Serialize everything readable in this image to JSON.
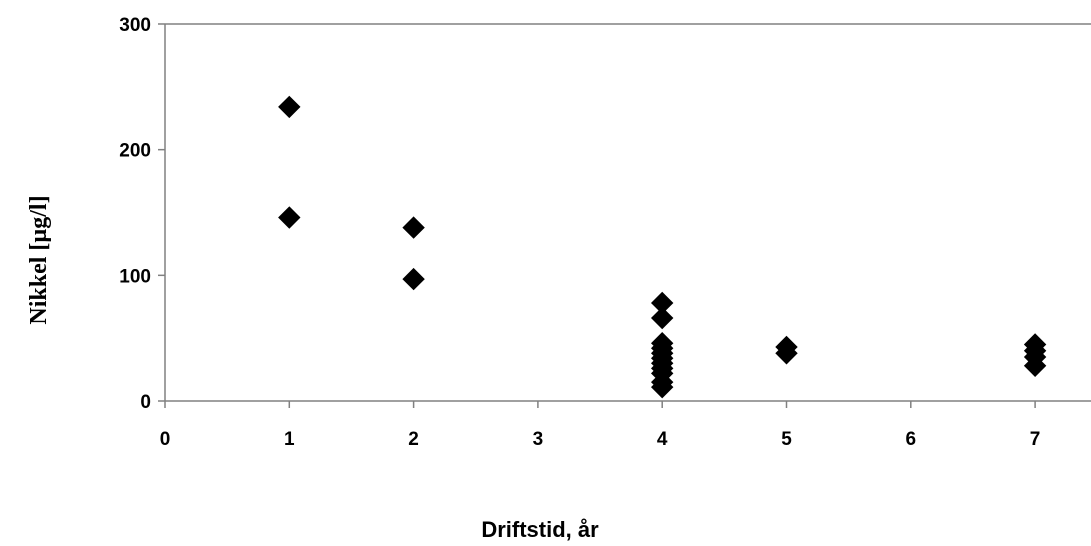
{
  "chart_data": {
    "type": "scatter",
    "title": "",
    "xlabel": "Driftstid, år",
    "ylabel": "Nikkel [µg/l]",
    "xlim": [
      0,
      7.4
    ],
    "ylim": [
      0,
      300
    ],
    "x_ticks": [
      "0",
      "1",
      "2",
      "3",
      "4",
      "5",
      "6",
      "7"
    ],
    "y_ticks": [
      "0",
      "100",
      "200",
      "300"
    ],
    "grid": false,
    "legend": "none",
    "marker": "diamond",
    "marker_color": "#000000",
    "series": [
      {
        "points": [
          {
            "x": 1,
            "y": 234
          },
          {
            "x": 1,
            "y": 146
          },
          {
            "x": 2,
            "y": 138
          },
          {
            "x": 2,
            "y": 97
          },
          {
            "x": 4,
            "y": 78
          },
          {
            "x": 4,
            "y": 66
          },
          {
            "x": 4,
            "y": 46
          },
          {
            "x": 4,
            "y": 42
          },
          {
            "x": 4,
            "y": 38
          },
          {
            "x": 4,
            "y": 34
          },
          {
            "x": 4,
            "y": 30
          },
          {
            "x": 4,
            "y": 26
          },
          {
            "x": 4,
            "y": 22
          },
          {
            "x": 4,
            "y": 15
          },
          {
            "x": 4,
            "y": 11
          },
          {
            "x": 5,
            "y": 43
          },
          {
            "x": 5,
            "y": 38
          },
          {
            "x": 7,
            "y": 45
          },
          {
            "x": 7,
            "y": 40
          },
          {
            "x": 7,
            "y": 35
          },
          {
            "x": 7,
            "y": 28
          }
        ]
      }
    ]
  }
}
